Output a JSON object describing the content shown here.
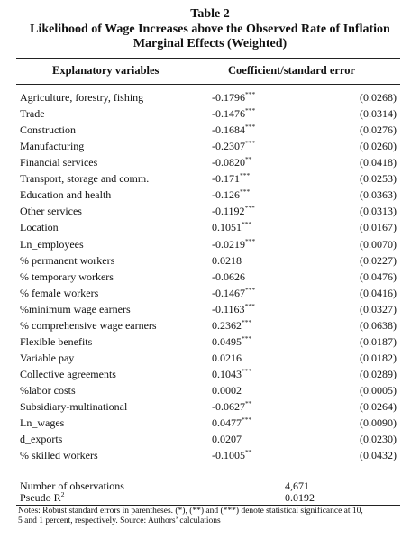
{
  "table": {
    "number": "Table 2",
    "title_line1": "Likelihood of Wage Increases above the Observed Rate of Inflation",
    "title_line2": "Marginal Effects (Weighted)",
    "col_variables": "Explanatory variables",
    "col_coef": "Coefficient/standard error",
    "rows": [
      {
        "var": "Agriculture, forestry, fishing",
        "coef": "-0.1796",
        "sig": "***",
        "se": "(0.0268)"
      },
      {
        "var": "Trade",
        "coef": "-0.1476",
        "sig": "***",
        "se": "(0.0314)"
      },
      {
        "var": "Construction",
        "coef": "-0.1684",
        "sig": "***",
        "se": "(0.0276)"
      },
      {
        "var": "Manufacturing",
        "coef": "-0.2307",
        "sig": "***",
        "se": "(0.0260)"
      },
      {
        "var": "Financial services",
        "coef": "-0.0820",
        "sig": "**",
        "se": "(0.0418)"
      },
      {
        "var": "Transport, storage and comm.",
        "coef": "-0.171",
        "sig": "***",
        "se": "(0.0253)"
      },
      {
        "var": "Education and health",
        "coef": "-0.126",
        "sig": "***",
        "se": "(0.0363)"
      },
      {
        "var": "Other services",
        "coef": "-0.1192",
        "sig": "***",
        "se": "(0.0313)"
      },
      {
        "var": "Location",
        "coef": "0.1051",
        "sig": "***",
        "se": "(0.0167)"
      },
      {
        "var": "Ln_employees",
        "coef": "-0.0219",
        "sig": "***",
        "se": "(0.0070)"
      },
      {
        "var": "% permanent workers",
        "coef": "0.0218",
        "sig": "",
        "se": "(0.0227)"
      },
      {
        "var": "% temporary workers",
        "coef": "-0.0626",
        "sig": "",
        "se": "(0.0476)"
      },
      {
        "var": "% female workers",
        "coef": "-0.1467",
        "sig": "***",
        "se": "(0.0416)"
      },
      {
        "var": "%minimum wage earners",
        "coef": "-0.1163",
        "sig": "***",
        "se": "(0.0327)"
      },
      {
        "var": "% comprehensive wage earners",
        "coef": "0.2362",
        "sig": "***",
        "se": "(0.0638)"
      },
      {
        "var": "Flexible benefits",
        "coef": "0.0495",
        "sig": "***",
        "se": "(0.0187)"
      },
      {
        "var": "Variable pay",
        "coef": "0.0216",
        "sig": "",
        "se": "(0.0182)"
      },
      {
        "var": "Collective agreements",
        "coef": "0.1043",
        "sig": "***",
        "se": "(0.0289)"
      },
      {
        "var": "%labor costs",
        "coef": "0.0002",
        "sig": "",
        "se": "(0.0005)"
      },
      {
        "var": "Subsidiary-multinational",
        "coef": "-0.0627",
        "sig": "**",
        "se": "(0.0264)"
      },
      {
        "var": "Ln_wages",
        "coef": "0.0477",
        "sig": "***",
        "se": "(0.0090)"
      },
      {
        "var": "d_exports",
        "coef": "0.0207",
        "sig": "",
        "se": "(0.0230)"
      },
      {
        "var": "% skilled workers",
        "coef": "-0.1005",
        "sig": "**",
        "se": "(0.0432)"
      }
    ],
    "n_obs_label": "Number of observations",
    "n_obs_value": "4,671",
    "pseudo_label": "Pseudo R",
    "pseudo_sup": "2",
    "pseudo_value": "0.0192",
    "notes_line1": "Notes: Robust standard errors in parentheses. (*), (**) and (***) denote statistical significance at 10,",
    "notes_line2": "5 and 1 percent, respectively. Source: Authors’ calculations"
  }
}
